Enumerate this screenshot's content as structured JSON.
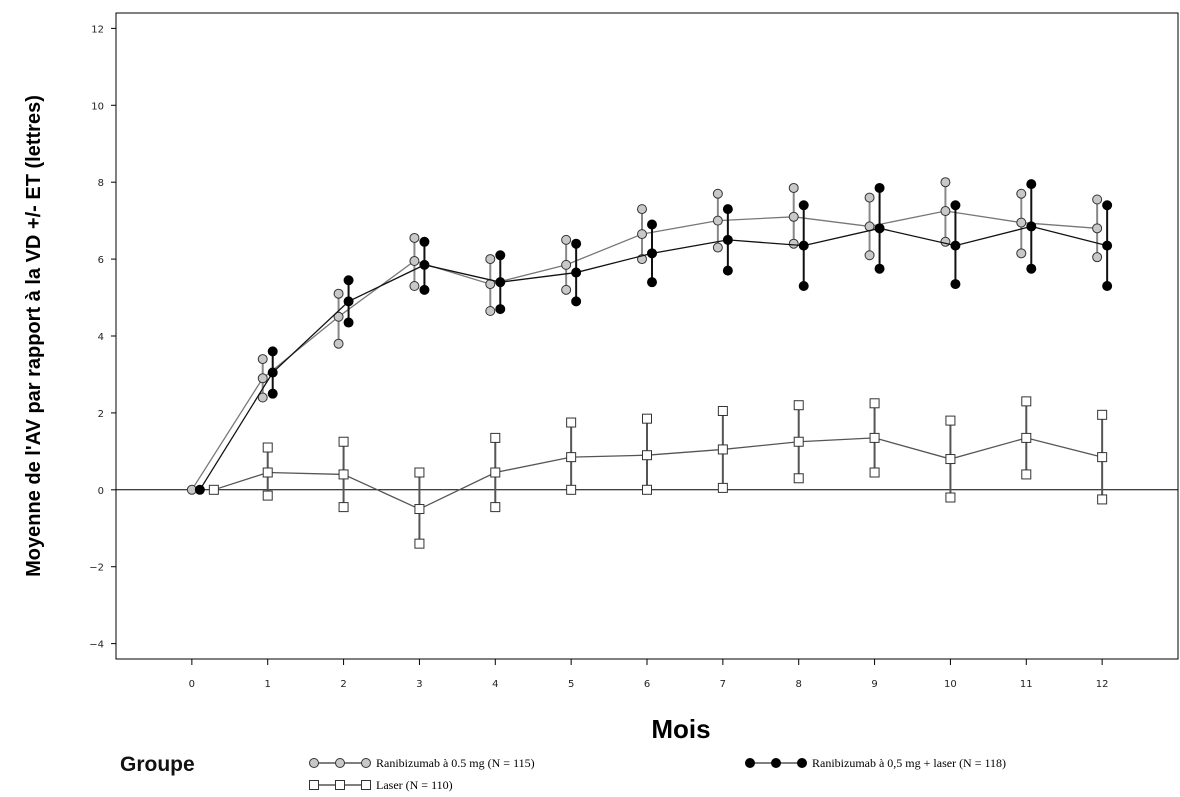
{
  "chart_data": {
    "type": "line",
    "xlabel": "Mois",
    "ylabel": "Moyenne de l'AV par rapport à la VD +/- ET (lettres)",
    "xlim": [
      -1,
      13
    ],
    "ylim": [
      -4.4,
      12.4
    ],
    "x_ticks": [
      0,
      1,
      2,
      3,
      4,
      5,
      6,
      7,
      8,
      9,
      10,
      11,
      12
    ],
    "x_tick_labels": [
      "0",
      "1",
      "2",
      "3",
      "4",
      "5",
      "6",
      "7",
      "8",
      "9",
      "10",
      "11",
      "12"
    ],
    "y_ticks": [
      -4,
      -2,
      0,
      2,
      4,
      6,
      8,
      10,
      12
    ],
    "y_tick_labels": [
      "−4",
      "−2",
      "0",
      "2",
      "4",
      "6",
      "8",
      "10",
      "12"
    ],
    "reference_line_y": 0,
    "grid": false,
    "legend": {
      "title": "Groupe",
      "position": "bottom"
    },
    "series": [
      {
        "name": "Ranibizumab à 0.5 mg (N = 115)",
        "marker": "open-circle",
        "color": "#888888",
        "x": [
          0,
          1,
          2,
          3,
          4,
          5,
          6,
          7,
          8,
          9,
          10,
          11,
          12
        ],
        "y": [
          0,
          2.9,
          4.5,
          5.95,
          5.35,
          5.85,
          6.65,
          7.0,
          7.1,
          6.85,
          7.25,
          6.95,
          6.8
        ],
        "lower": [
          0,
          2.4,
          3.8,
          5.3,
          4.65,
          5.2,
          6.0,
          6.3,
          6.4,
          6.1,
          6.45,
          6.15,
          6.05
        ],
        "upper": [
          0,
          3.4,
          5.1,
          6.55,
          6.0,
          6.5,
          7.3,
          7.7,
          7.85,
          7.6,
          8.0,
          7.7,
          7.55
        ]
      },
      {
        "name": "Ranibizumab à 0,5 mg + laser (N = 118)",
        "marker": "filled-circle",
        "color": "#111111",
        "x": [
          0,
          1,
          2,
          3,
          4,
          5,
          6,
          7,
          8,
          9,
          10,
          11,
          12
        ],
        "y": [
          0,
          3.05,
          4.9,
          5.85,
          5.4,
          5.65,
          6.15,
          6.5,
          6.35,
          6.8,
          6.35,
          6.85,
          6.35
        ],
        "lower": [
          0,
          2.5,
          4.35,
          5.2,
          4.7,
          4.9,
          5.4,
          5.7,
          5.3,
          5.75,
          5.35,
          5.75,
          5.3
        ],
        "upper": [
          0,
          3.6,
          5.45,
          6.45,
          6.1,
          6.4,
          6.9,
          7.3,
          7.4,
          7.85,
          7.4,
          7.95,
          7.4
        ]
      },
      {
        "name": "Laser (N = 110)",
        "marker": "open-square",
        "color": "#555555",
        "x": [
          0,
          1,
          2,
          3,
          4,
          5,
          6,
          7,
          8,
          9,
          10,
          11,
          12
        ],
        "y": [
          0,
          0.45,
          0.4,
          -0.5,
          0.45,
          0.85,
          0.9,
          1.05,
          1.25,
          1.35,
          0.8,
          1.35,
          0.85
        ],
        "lower": [
          0,
          -0.15,
          -0.45,
          -1.4,
          -0.45,
          0.0,
          0.0,
          0.05,
          0.3,
          0.45,
          -0.2,
          0.4,
          -0.25
        ],
        "upper": [
          0,
          1.1,
          1.25,
          0.45,
          1.35,
          1.75,
          1.85,
          2.05,
          2.2,
          2.25,
          1.8,
          2.3,
          1.95
        ]
      }
    ]
  }
}
